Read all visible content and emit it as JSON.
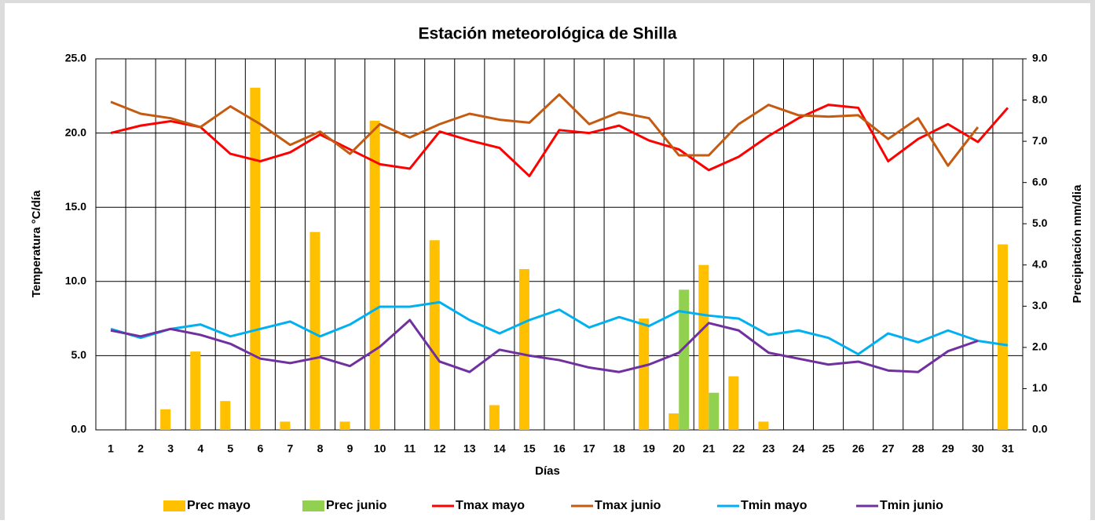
{
  "chart_data": {
    "type": "combo",
    "title": "Estación meteorológica de Shilla",
    "x_label": "Días",
    "y_label": "Temperatura °C/día",
    "y2_label": "Precipitación mm/dia",
    "categories": [
      "1",
      "2",
      "3",
      "4",
      "5",
      "6",
      "7",
      "8",
      "9",
      "10",
      "11",
      "12",
      "13",
      "14",
      "15",
      "16",
      "17",
      "18",
      "19",
      "20",
      "21",
      "22",
      "23",
      "24",
      "25",
      "26",
      "27",
      "28",
      "29",
      "30",
      "31"
    ],
    "ylim": [
      0,
      25
    ],
    "yticks": [
      {
        "value": 0,
        "label": "0.0"
      },
      {
        "value": 5,
        "label": "5.0"
      },
      {
        "value": 10,
        "label": "10.0"
      },
      {
        "value": 15,
        "label": "15.0"
      },
      {
        "value": 20,
        "label": "20.0"
      },
      {
        "value": 25,
        "label": "25.0"
      }
    ],
    "y2lim": [
      0,
      9
    ],
    "y2ticks": [
      {
        "value": 0,
        "label": "0.0"
      },
      {
        "value": 1,
        "label": "1.0"
      },
      {
        "value": 2,
        "label": "2.0"
      },
      {
        "value": 3,
        "label": "3.0"
      },
      {
        "value": 4,
        "label": "4.0"
      },
      {
        "value": 5,
        "label": "5.0"
      },
      {
        "value": 6,
        "label": "6.0"
      },
      {
        "value": 7,
        "label": "7.0"
      },
      {
        "value": 8,
        "label": "8.0"
      },
      {
        "value": 9,
        "label": "9.0"
      }
    ],
    "grid": true,
    "legend": "bottom",
    "series": [
      {
        "name": "Prec mayo",
        "type": "bar",
        "axis": "y2",
        "color": "#ffc000",
        "values": [
          0,
          0,
          0.5,
          1.9,
          0.7,
          8.3,
          0.2,
          4.8,
          0.2,
          7.5,
          0,
          4.6,
          0,
          0.6,
          3.9,
          0,
          0,
          0,
          2.7,
          0.4,
          4.0,
          1.3,
          0.2,
          0,
          0,
          0,
          0,
          0,
          0,
          0,
          4.5
        ]
      },
      {
        "name": "Prec junio",
        "type": "bar",
        "axis": "y2",
        "color": "#92d050",
        "values": [
          0,
          0,
          0,
          0,
          0,
          0,
          0,
          0,
          0,
          0,
          0,
          0,
          0,
          0,
          0,
          0,
          0,
          0,
          0,
          3.4,
          0.9,
          0,
          0,
          0,
          0,
          0,
          0,
          0,
          0,
          0,
          0
        ]
      },
      {
        "name": "Tmax mayo",
        "type": "line",
        "color": "#ff0000",
        "values": [
          20.0,
          20.5,
          20.8,
          20.4,
          18.6,
          18.1,
          18.7,
          19.9,
          18.9,
          17.9,
          17.6,
          20.1,
          19.5,
          19.0,
          17.1,
          20.2,
          20.0,
          20.5,
          19.5,
          18.9,
          17.5,
          18.4,
          19.8,
          21.0,
          21.9,
          21.7,
          18.1,
          19.6,
          20.6,
          19.4,
          21.7
        ]
      },
      {
        "name": "Tmax junio",
        "type": "line",
        "color": "#c55a11",
        "values": [
          22.1,
          21.3,
          21.0,
          20.4,
          21.8,
          20.6,
          19.2,
          20.1,
          18.6,
          20.6,
          19.7,
          20.6,
          21.3,
          20.9,
          20.7,
          22.6,
          20.6,
          21.4,
          21.0,
          18.5,
          18.5,
          20.6,
          21.9,
          21.2,
          21.1,
          21.2,
          19.6,
          21.0,
          17.8,
          20.4,
          null
        ]
      },
      {
        "name": "Tmin mayo",
        "type": "line",
        "color": "#00b0f0",
        "values": [
          6.8,
          6.2,
          6.8,
          7.1,
          6.3,
          6.8,
          7.3,
          6.3,
          7.1,
          8.3,
          8.3,
          8.6,
          7.4,
          6.5,
          7.4,
          8.1,
          6.9,
          7.6,
          7.0,
          8.0,
          7.7,
          7.5,
          6.4,
          6.7,
          6.2,
          5.1,
          6.5,
          5.9,
          6.7,
          6.0,
          5.7
        ]
      },
      {
        "name": "Tmin junio",
        "type": "line",
        "color": "#7030a0",
        "values": [
          6.7,
          6.3,
          6.8,
          6.4,
          5.8,
          4.8,
          4.5,
          4.9,
          4.3,
          5.6,
          7.4,
          4.6,
          3.9,
          5.4,
          5.0,
          4.7,
          4.2,
          3.9,
          4.4,
          5.2,
          7.2,
          6.7,
          5.2,
          4.8,
          4.4,
          4.6,
          4.0,
          3.9,
          5.3,
          6.0,
          null
        ]
      }
    ]
  }
}
